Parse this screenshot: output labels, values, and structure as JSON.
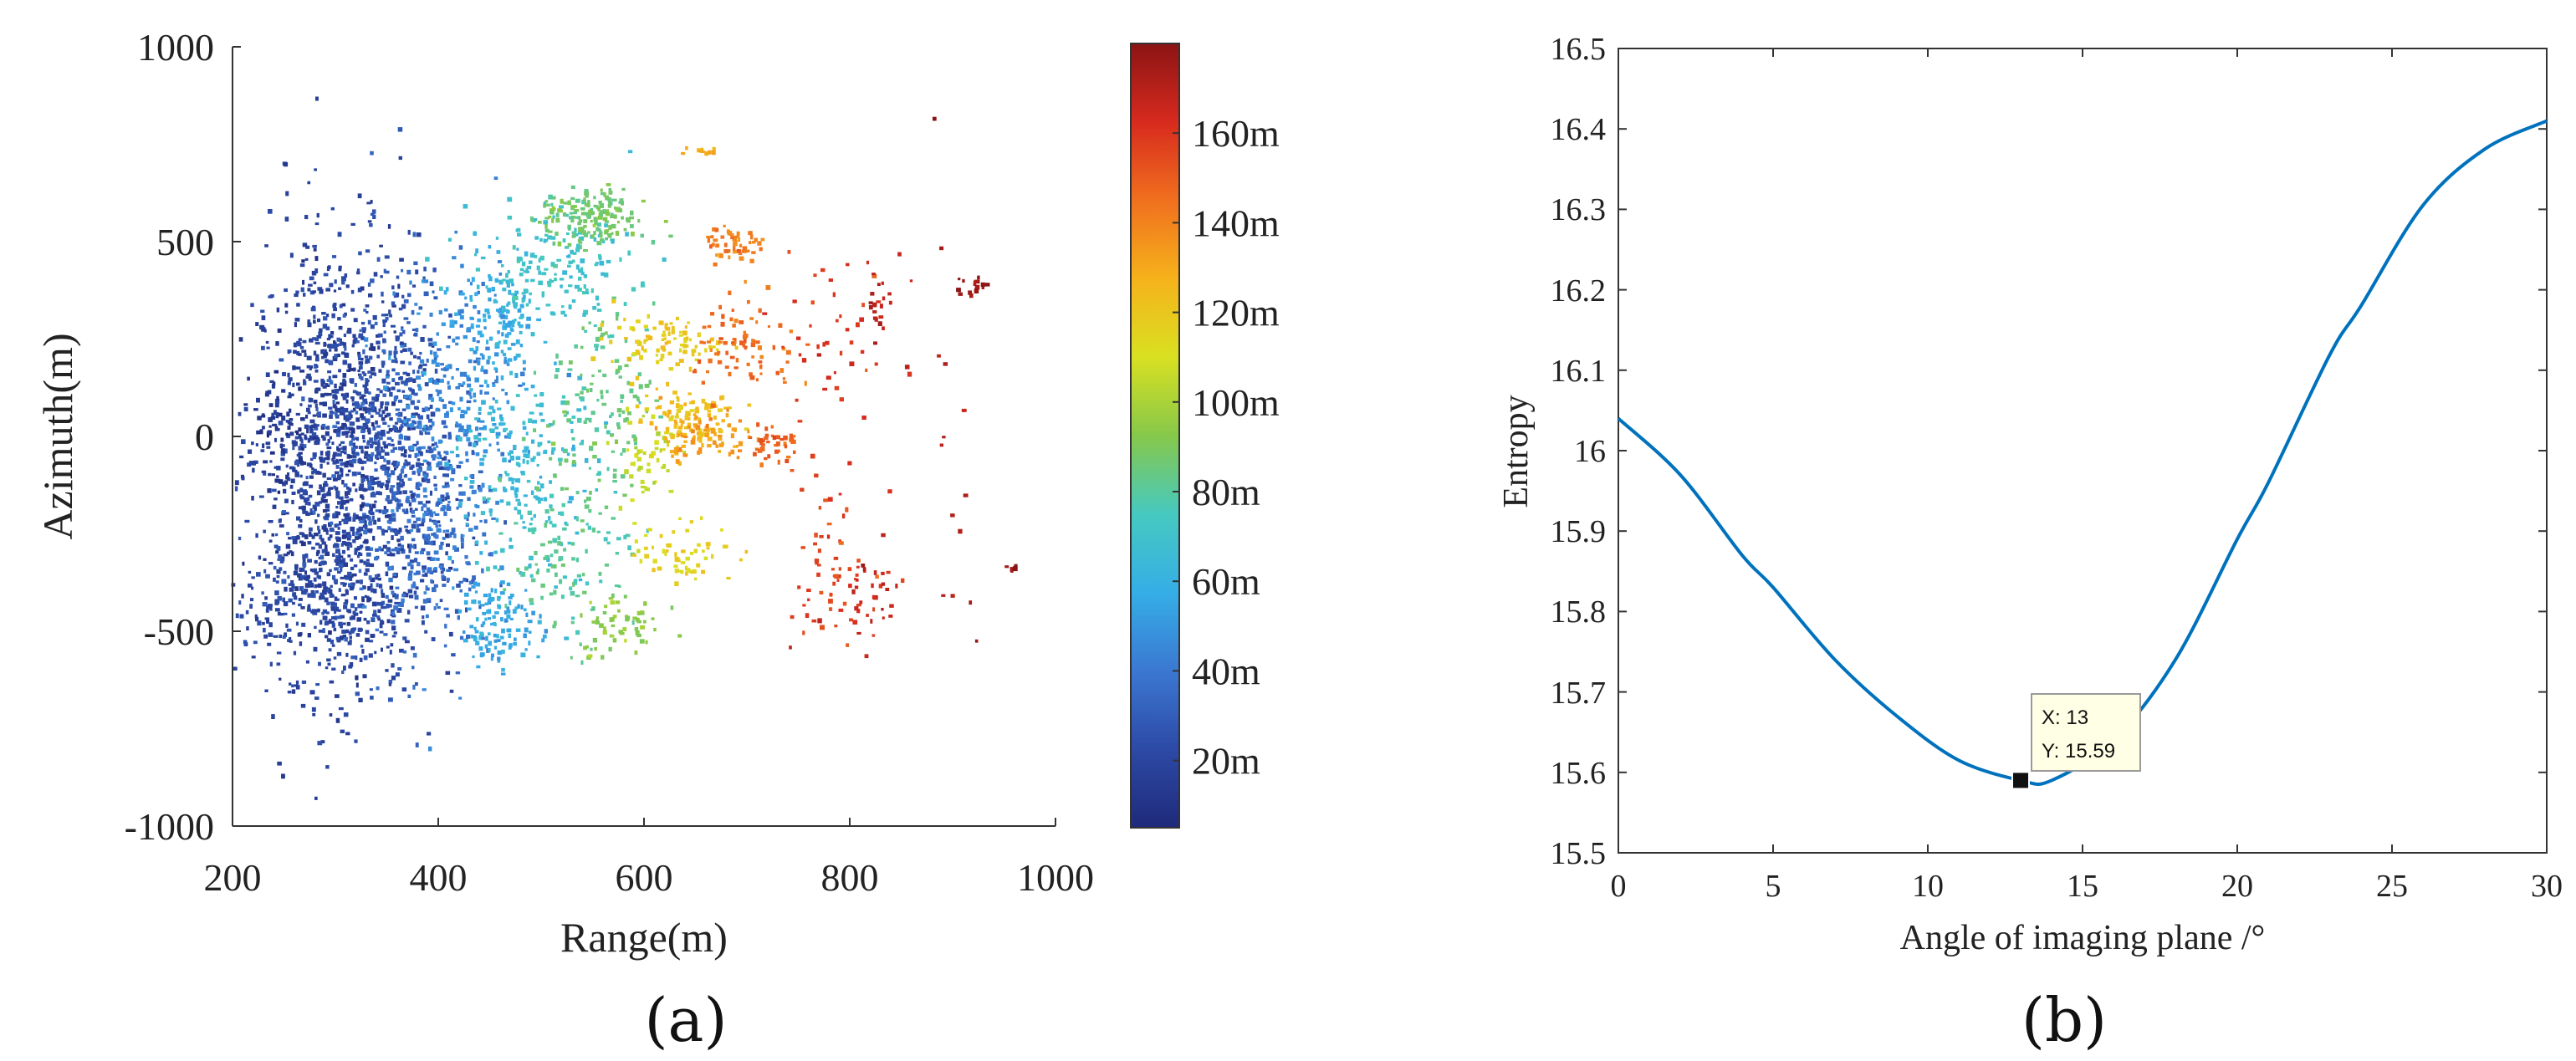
{
  "colors": {
    "line": "#0072BD",
    "tooltip_bg": "#FFFFE6",
    "tooltip_border": "#9a9a9a",
    "colormap": [
      "#1f2a7a",
      "#2c4aa6",
      "#3b78d2",
      "#35aee6",
      "#46c9c0",
      "#86c84a",
      "#d9e021",
      "#f6b21b",
      "#f0701e",
      "#d72a1e",
      "#8b1414"
    ]
  },
  "chart_data": [
    {
      "panel_label": "(a)",
      "type": "scatter",
      "title": "",
      "xlabel": "Range(m)",
      "ylabel": "Azimuth(m)",
      "xlim": [
        200,
        1000
      ],
      "ylim": [
        -1000,
        1000
      ],
      "xticks": [
        "200",
        "400",
        "600",
        "800",
        "1000"
      ],
      "yticks": [
        "-1000",
        "-500",
        "0",
        "500",
        "1000"
      ],
      "colorbar": {
        "range": [
          5,
          180
        ],
        "ticks": [
          {
            "value": 20,
            "label": "20m"
          },
          {
            "value": 40,
            "label": "40m"
          },
          {
            "value": 60,
            "label": "60m"
          },
          {
            "value": 80,
            "label": "80m"
          },
          {
            "value": 100,
            "label": "100m"
          },
          {
            "value": 120,
            "label": "120m"
          },
          {
            "value": 140,
            "label": "140m"
          },
          {
            "value": 160,
            "label": "160m"
          }
        ]
      },
      "clusters": [
        {
          "x": 300,
          "y": -50,
          "sx": 40,
          "sy": 280,
          "n": 1100,
          "h": 18
        },
        {
          "x": 350,
          "y": 0,
          "sx": 35,
          "sy": 220,
          "n": 520,
          "h": 28
        },
        {
          "x": 250,
          "y": 20,
          "sx": 15,
          "sy": 80,
          "n": 60,
          "h": 12
        },
        {
          "x": 300,
          "y": -420,
          "sx": 50,
          "sy": 100,
          "n": 320,
          "h": 22
        },
        {
          "x": 390,
          "y": -260,
          "sx": 30,
          "sy": 160,
          "n": 250,
          "h": 38
        },
        {
          "x": 420,
          "y": 100,
          "sx": 30,
          "sy": 170,
          "n": 230,
          "h": 46
        },
        {
          "x": 460,
          "y": -480,
          "sx": 20,
          "sy": 60,
          "n": 120,
          "h": 56
        },
        {
          "x": 460,
          "y": 280,
          "sx": 20,
          "sy": 80,
          "n": 120,
          "h": 58
        },
        {
          "x": 480,
          "y": -100,
          "sx": 30,
          "sy": 150,
          "n": 190,
          "h": 65
        },
        {
          "x": 510,
          "y": 430,
          "sx": 40,
          "sy": 70,
          "n": 170,
          "h": 70
        },
        {
          "x": 530,
          "y": -240,
          "sx": 30,
          "sy": 150,
          "n": 140,
          "h": 80
        },
        {
          "x": 550,
          "y": 560,
          "sx": 25,
          "sy": 35,
          "n": 170,
          "h": 87
        },
        {
          "x": 560,
          "y": 100,
          "sx": 25,
          "sy": 120,
          "n": 110,
          "h": 84
        },
        {
          "x": 580,
          "y": -480,
          "sx": 20,
          "sy": 40,
          "n": 60,
          "h": 94
        },
        {
          "x": 600,
          "y": -40,
          "sx": 15,
          "sy": 60,
          "n": 50,
          "h": 106
        },
        {
          "x": 620,
          "y": 240,
          "sx": 25,
          "sy": 30,
          "n": 90,
          "h": 118
        },
        {
          "x": 640,
          "y": 50,
          "sx": 25,
          "sy": 40,
          "n": 100,
          "h": 122
        },
        {
          "x": 640,
          "y": -300,
          "sx": 25,
          "sy": 40,
          "n": 60,
          "h": 115
        },
        {
          "x": 660,
          "y": 0,
          "sx": 20,
          "sy": 30,
          "n": 70,
          "h": 132
        },
        {
          "x": 690,
          "y": 490,
          "sx": 15,
          "sy": 30,
          "n": 50,
          "h": 140
        },
        {
          "x": 700,
          "y": 220,
          "sx": 25,
          "sy": 60,
          "n": 80,
          "h": 146
        },
        {
          "x": 730,
          "y": -30,
          "sx": 15,
          "sy": 30,
          "n": 40,
          "h": 148
        },
        {
          "x": 780,
          "y": -330,
          "sx": 25,
          "sy": 90,
          "n": 60,
          "h": 156
        },
        {
          "x": 790,
          "y": 220,
          "sx": 30,
          "sy": 130,
          "n": 45,
          "h": 160
        },
        {
          "x": 820,
          "y": -420,
          "sx": 15,
          "sy": 60,
          "n": 30,
          "h": 165
        },
        {
          "x": 830,
          "y": 330,
          "sx": 10,
          "sy": 50,
          "n": 20,
          "h": 168
        },
        {
          "x": 920,
          "y": 380,
          "sx": 8,
          "sy": 15,
          "n": 15,
          "h": 176
        },
        {
          "x": 900,
          "y": 50,
          "sx": 10,
          "sy": 400,
          "n": 15,
          "h": 172
        },
        {
          "x": 965,
          "y": -340,
          "sx": 5,
          "sy": 5,
          "n": 5,
          "h": 178
        },
        {
          "x": 660,
          "y": 730,
          "sx": 8,
          "sy": 6,
          "n": 12,
          "h": 128
        },
        {
          "x": 250,
          "y": 700,
          "sx": 3,
          "sy": 3,
          "n": 4,
          "h": 20
        }
      ]
    },
    {
      "panel_label": "(b)",
      "type": "line",
      "title": "",
      "xlabel": "Angle of imaging plane /°",
      "ylabel": "Entropy",
      "xlim": [
        0,
        30
      ],
      "ylim": [
        15.5,
        16.5
      ],
      "xticks": [
        "0",
        "5",
        "10",
        "15",
        "20",
        "25",
        "30"
      ],
      "yticks": [
        "15.5",
        "15.6",
        "15.7",
        "15.8",
        "15.9",
        "16",
        "16.1",
        "16.2",
        "16.3",
        "16.4",
        "16.5"
      ],
      "series": [
        {
          "name": "Entropy",
          "x": [
            0,
            2,
            4,
            5,
            7,
            9,
            11,
            13,
            14,
            16,
            18,
            20,
            21,
            23,
            24,
            26,
            28,
            30
          ],
          "y": [
            16.04,
            15.97,
            15.87,
            15.83,
            15.74,
            15.67,
            15.615,
            15.59,
            15.59,
            15.64,
            15.74,
            15.89,
            15.96,
            16.12,
            16.18,
            16.305,
            16.375,
            16.41
          ]
        }
      ],
      "datatip": {
        "x": 13,
        "y": 15.59,
        "label_x": "X: 13",
        "label_y": "Y: 15.59"
      }
    }
  ]
}
